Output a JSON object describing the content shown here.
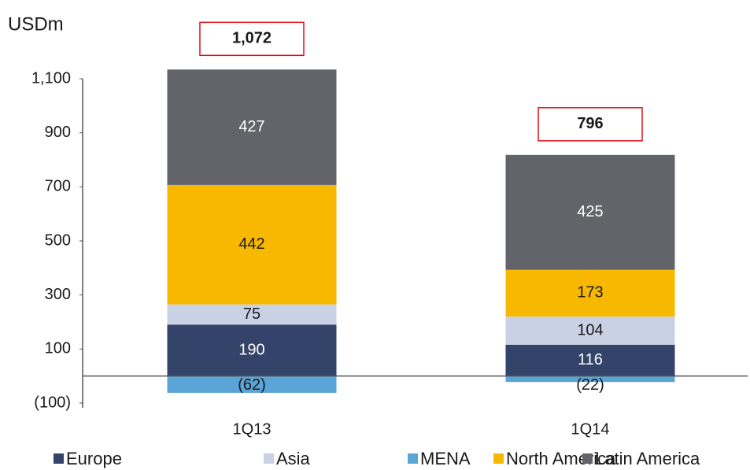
{
  "chart_data": {
    "type": "stacked_bar",
    "y_label": "USDm",
    "categories": [
      "1Q13",
      "1Q14"
    ],
    "series": [
      {
        "name": "Europe",
        "color": "#344369",
        "values": [
          190,
          116
        ]
      },
      {
        "name": "Asia",
        "color": "#c9d1e4",
        "values": [
          75,
          104
        ]
      },
      {
        "name": "MENA",
        "color": "#5ba4d8",
        "values": [
          -62,
          -22
        ],
        "value_labels": [
          "(62)",
          "(22)"
        ]
      },
      {
        "name": "North America",
        "color": "#f9b800",
        "values": [
          442,
          173
        ]
      },
      {
        "name": "Latin America",
        "color": "#636469",
        "values": [
          427,
          425
        ]
      }
    ],
    "totals": {
      "values": [
        1072,
        796
      ],
      "value_labels": [
        "1,072",
        "796"
      ]
    },
    "ylim": [
      -100,
      1100
    ],
    "yticks": [
      {
        "value": -100,
        "label": "(100)"
      },
      100,
      300,
      500,
      700,
      900,
      {
        "value": 1100,
        "label": "1,100"
      }
    ]
  }
}
